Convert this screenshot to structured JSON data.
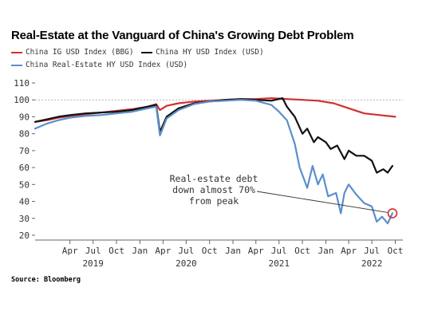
{
  "title": "Real-Estate at the Vanguard of China's Growing Debt Problem",
  "source": "Source: Bloomberg",
  "colors": {
    "ig": "#d32f2f",
    "hy": "#111111",
    "re": "#5b8fcb",
    "ref_line": "#9a9a9a"
  },
  "chart_data": {
    "type": "line",
    "title": "Real-Estate at the Vanguard of China's Growing Debt Problem",
    "ylim": [
      20,
      110
    ],
    "y_ticks": [
      20,
      30,
      40,
      50,
      60,
      70,
      80,
      90,
      100,
      110
    ],
    "x_range": [
      "2018-11-15",
      "2022-10-31"
    ],
    "x_tick_labels": [
      {
        "date": "2019-04-01",
        "label": "Apr"
      },
      {
        "date": "2019-07-01",
        "label": "Jul"
      },
      {
        "date": "2019-10-01",
        "label": "Oct"
      },
      {
        "date": "2020-01-01",
        "label": "Jan"
      },
      {
        "date": "2020-04-01",
        "label": "Apr"
      },
      {
        "date": "2020-07-01",
        "label": "Jul"
      },
      {
        "date": "2020-10-01",
        "label": "Oct"
      },
      {
        "date": "2021-01-01",
        "label": "Jan"
      },
      {
        "date": "2021-04-01",
        "label": "Apr"
      },
      {
        "date": "2021-07-01",
        "label": "Jul"
      },
      {
        "date": "2021-10-01",
        "label": "Oct"
      },
      {
        "date": "2022-01-01",
        "label": "Jan"
      },
      {
        "date": "2022-04-01",
        "label": "Apr"
      },
      {
        "date": "2022-07-01",
        "label": "Jul"
      },
      {
        "date": "2022-10-01",
        "label": "Oct"
      }
    ],
    "year_labels": [
      {
        "date": "2019-07-01",
        "label": "2019"
      },
      {
        "date": "2020-07-01",
        "label": "2020"
      },
      {
        "date": "2021-07-01",
        "label": "2021"
      },
      {
        "date": "2022-07-01",
        "label": "2022"
      }
    ],
    "reference_line": 100,
    "series": [
      {
        "name": "China IG USD Index (BBG)",
        "color": "#d32f2f",
        "x": [
          "2018-11-15",
          "2019-01-01",
          "2019-02-15",
          "2019-04-01",
          "2019-06-01",
          "2019-08-01",
          "2019-10-01",
          "2019-12-01",
          "2020-02-01",
          "2020-03-05",
          "2020-03-20",
          "2020-04-15",
          "2020-06-01",
          "2020-08-01",
          "2020-10-01",
          "2020-12-01",
          "2021-02-01",
          "2021-04-01",
          "2021-06-01",
          "2021-08-01",
          "2021-10-01",
          "2021-12-01",
          "2022-02-01",
          "2022-04-01",
          "2022-06-01",
          "2022-08-01",
          "2022-10-01"
        ],
        "values": [
          87,
          88,
          89.5,
          90.5,
          91.5,
          92.5,
          93.5,
          94.5,
          96,
          97.5,
          94,
          96.5,
          98,
          99,
          99.5,
          100,
          100.5,
          100.5,
          101,
          100.5,
          100,
          99.5,
          98,
          95,
          92,
          91,
          90
        ]
      },
      {
        "name": "China HY USD Index (USD)",
        "color": "#111111",
        "x": [
          "2018-11-15",
          "2019-01-01",
          "2019-02-15",
          "2019-04-01",
          "2019-06-01",
          "2019-08-01",
          "2019-10-01",
          "2019-12-01",
          "2020-02-01",
          "2020-03-05",
          "2020-03-20",
          "2020-04-15",
          "2020-06-01",
          "2020-08-01",
          "2020-10-01",
          "2020-12-01",
          "2021-02-01",
          "2021-04-01",
          "2021-06-01",
          "2021-07-15",
          "2021-08-01",
          "2021-09-01",
          "2021-10-01",
          "2021-10-20",
          "2021-11-15",
          "2021-12-01",
          "2022-01-01",
          "2022-01-20",
          "2022-02-15",
          "2022-03-15",
          "2022-04-01",
          "2022-05-01",
          "2022-06-01",
          "2022-07-01",
          "2022-07-20",
          "2022-08-15",
          "2022-09-01",
          "2022-09-20"
        ],
        "values": [
          87,
          88.5,
          90,
          91,
          92,
          92.5,
          93,
          94,
          96,
          97,
          81,
          90,
          95,
          98,
          99,
          100,
          100.5,
          100,
          99.5,
          101,
          96,
          90,
          80,
          83,
          75,
          78,
          75,
          71,
          73,
          65,
          70,
          67,
          67,
          64,
          57,
          59,
          57,
          61
        ]
      },
      {
        "name": "China Real-Estate HY USD Index (USD)",
        "color": "#5b8fcb",
        "x": [
          "2018-11-15",
          "2019-01-01",
          "2019-02-15",
          "2019-04-01",
          "2019-06-01",
          "2019-08-01",
          "2019-10-01",
          "2019-12-01",
          "2020-02-01",
          "2020-03-05",
          "2020-03-20",
          "2020-04-15",
          "2020-06-01",
          "2020-08-01",
          "2020-10-01",
          "2020-12-01",
          "2021-02-01",
          "2021-04-01",
          "2021-06-01",
          "2021-07-01",
          "2021-08-01",
          "2021-09-01",
          "2021-09-20",
          "2021-10-20",
          "2021-11-10",
          "2021-12-01",
          "2021-12-20",
          "2022-01-10",
          "2022-02-10",
          "2022-03-01",
          "2022-03-15",
          "2022-04-01",
          "2022-05-01",
          "2022-06-01",
          "2022-07-01",
          "2022-07-20",
          "2022-08-10",
          "2022-09-01",
          "2022-09-20"
        ],
        "values": [
          83,
          86,
          88,
          89.5,
          90.5,
          91,
          92,
          93,
          95,
          96,
          79,
          89,
          94,
          97.5,
          99,
          99.5,
          100,
          99.5,
          97,
          93,
          88,
          74,
          60,
          48,
          61,
          50,
          56,
          43,
          45,
          33,
          45,
          50,
          44,
          39,
          37,
          28,
          31,
          27,
          33
        ]
      }
    ],
    "annotation": {
      "lines": [
        "Real-estate debt",
        "down almost 70%",
        "from peak"
      ],
      "target_date": "2022-09-20",
      "target_value": 33
    }
  }
}
